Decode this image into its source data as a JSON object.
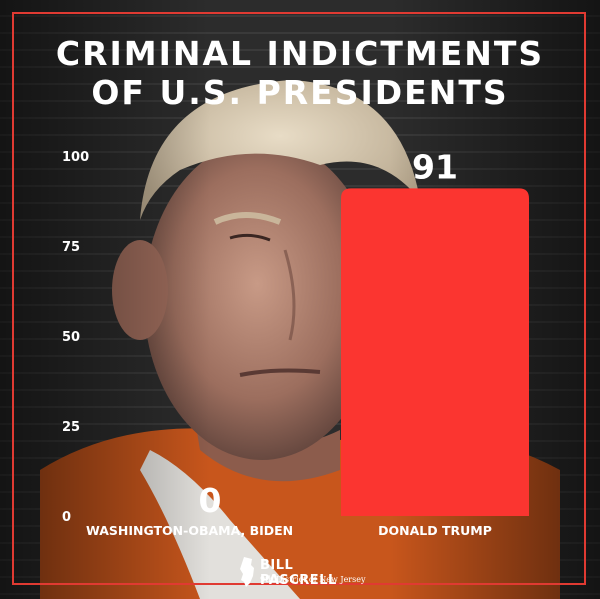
{
  "title_line1": "CRIMINAL INDICTMENTS",
  "title_line2": "OF U.S. PRESIDENTS",
  "chart_data": {
    "type": "bar",
    "categories": [
      "WASHINGTON-OBAMA, BIDEN",
      "DONALD TRUMP"
    ],
    "values": [
      0,
      91
    ],
    "value_labels": [
      "0",
      "91"
    ],
    "yticks": [
      0,
      25,
      50,
      75,
      100
    ],
    "ylim": [
      0,
      100
    ],
    "xlabel": "",
    "ylabel": "",
    "grid": false,
    "bar_color": "#fb3530"
  },
  "logo": {
    "name": "BILL PASCRELL",
    "subtitle": "9th District of New Jersey"
  },
  "colors": {
    "frame": "#e03a32",
    "bar": "#fb3530",
    "text": "#ffffff"
  }
}
